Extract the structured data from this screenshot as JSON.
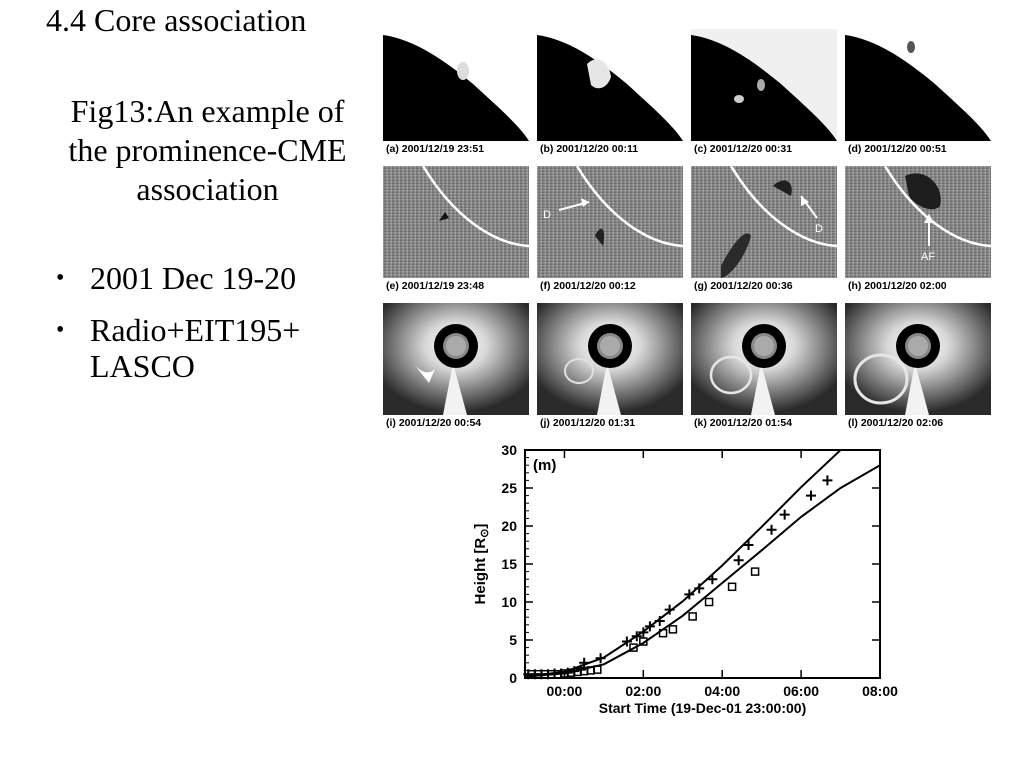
{
  "slide": {
    "heading": "4.4 Core association",
    "caption": "Fig13:An example of the prominence-CME association",
    "bullets": [
      "2001 Dec 19-20",
      "Radio+EIT195+ LASCO"
    ]
  },
  "panels": {
    "row1": [
      "(a) 2001/12/19 23:51",
      "(b) 2001/12/20 00:11",
      "(c) 2001/12/20 00:31",
      "(d) 2001/12/20 00:51"
    ],
    "row2": [
      "(e) 2001/12/19 23:48",
      "(f) 2001/12/20 00:12",
      "(g) 2001/12/20 00:36",
      "(h) 2001/12/20 02:00"
    ],
    "row3": [
      "(i) 2001/12/20 00:54",
      "(j) 2001/12/20 01:31",
      "(k) 2001/12/20 01:54",
      "(l) 2001/12/20 02:06"
    ],
    "annotations": {
      "f": "D",
      "g": "D",
      "h": "AF"
    }
  },
  "chart_data": {
    "type": "scatter",
    "panel_label": "(m)",
    "xlabel": "Start Time (19-Dec-01 23:00:00)",
    "ylabel": "Height [R",
    "ylabel_symbol": "⊙",
    "ylabel_close": "]",
    "xlim": [
      "23:00",
      "08:00"
    ],
    "ylim": [
      0,
      30
    ],
    "xticks": [
      "00:00",
      "02:00",
      "04:00",
      "06:00",
      "08:00"
    ],
    "yticks": [
      0,
      5,
      10,
      15,
      20,
      25,
      30
    ],
    "series": [
      {
        "marker": "plus",
        "x": [
          "23:05",
          "23:15",
          "23:25",
          "23:35",
          "23:45",
          "23:55",
          "00:05",
          "00:15",
          "00:25",
          "00:30",
          "00:55",
          "01:35",
          "01:50",
          "02:00",
          "02:10",
          "02:25",
          "02:40",
          "03:10",
          "03:25",
          "03:45",
          "04:25",
          "04:40",
          "05:15",
          "05:35",
          "06:15",
          "06:40"
        ],
        "y": [
          0.5,
          0.5,
          0.5,
          0.5,
          0.6,
          0.6,
          0.7,
          0.9,
          1.1,
          2.0,
          2.6,
          4.8,
          5.5,
          6.0,
          6.8,
          7.5,
          9.0,
          11.0,
          11.8,
          13.0,
          15.5,
          17.5,
          19.5,
          21.5,
          24.0,
          26.0
        ]
      },
      {
        "marker": "square",
        "x": [
          "23:10",
          "23:20",
          "23:30",
          "23:40",
          "23:50",
          "00:00",
          "00:10",
          "00:20",
          "00:30",
          "00:40",
          "00:50",
          "01:45",
          "02:00",
          "02:30",
          "02:45",
          "03:15",
          "03:40",
          "04:15",
          "04:50"
        ],
        "y": [
          0.5,
          0.5,
          0.5,
          0.5,
          0.5,
          0.6,
          0.7,
          0.8,
          0.9,
          1.0,
          1.1,
          4.0,
          4.8,
          5.9,
          6.4,
          8.1,
          10.0,
          12.0,
          14.0
        ]
      }
    ],
    "fits": [
      {
        "x": [
          "23:00",
          "00:00",
          "01:00",
          "02:00",
          "03:00",
          "04:00",
          "05:00",
          "06:00",
          "07:00",
          "07:52"
        ],
        "y": [
          0.2,
          0.8,
          2.7,
          6.1,
          10.1,
          14.8,
          19.9,
          25.1,
          30.0,
          30.0
        ]
      },
      {
        "x": [
          "23:00",
          "00:00",
          "01:00",
          "02:00",
          "03:00",
          "04:00",
          "05:00",
          "06:00",
          "07:00",
          "08:00"
        ],
        "y": [
          0.2,
          0.6,
          1.8,
          4.6,
          8.2,
          12.5,
          16.8,
          21.2,
          25.0,
          28.0
        ]
      }
    ]
  }
}
